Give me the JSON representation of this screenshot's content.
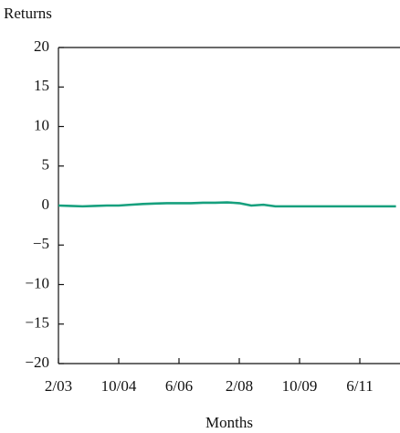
{
  "chart_data": {
    "type": "line",
    "ylabel": "Returns",
    "xlabel": "Months",
    "categories": [
      "2/03",
      null,
      null,
      null,
      null,
      "10/04",
      null,
      null,
      null,
      null,
      "6/06",
      null,
      null,
      null,
      null,
      "2/08",
      null,
      null,
      null,
      null,
      "10/09",
      null,
      null,
      null,
      null,
      "6/11",
      null,
      null,
      null
    ],
    "series": [
      {
        "name": null,
        "color": "#17a07e",
        "values": [
          0,
          -0.05,
          -0.1,
          -0.05,
          0,
          0,
          0.1,
          0.2,
          0.25,
          0.3,
          0.3,
          0.3,
          0.35,
          0.35,
          0.4,
          0.3,
          0,
          0.1,
          -0.1,
          -0.1,
          -0.1,
          -0.1,
          -0.1,
          -0.1,
          -0.1,
          -0.1,
          -0.1,
          -0.1,
          -0.1
        ]
      }
    ],
    "ylim": [
      -20,
      20
    ],
    "yticks": [
      {
        "value": -20,
        "label": "−20"
      },
      {
        "value": -15,
        "label": "−15"
      },
      {
        "value": -10,
        "label": "−10"
      },
      {
        "value": -5,
        "label": "−5"
      },
      0,
      5,
      10,
      15,
      20
    ]
  }
}
